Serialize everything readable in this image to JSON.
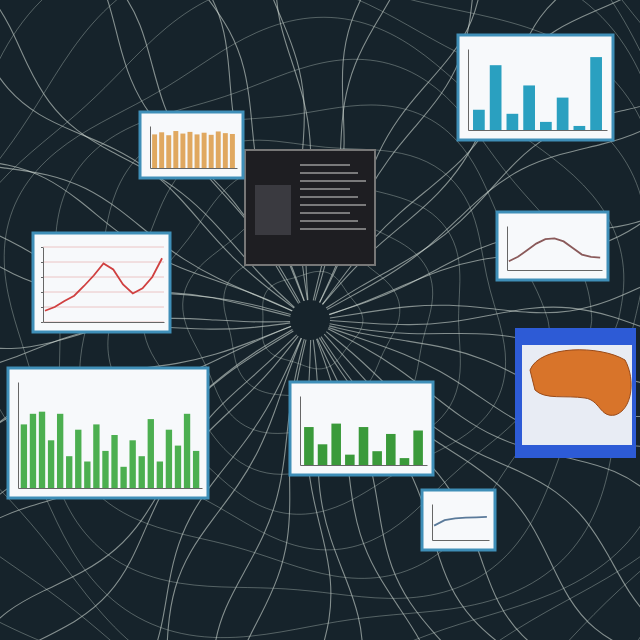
{
  "chart_data": [
    {
      "type": "bar",
      "categories": [
        null,
        null,
        null,
        null,
        null,
        null,
        null,
        null,
        null,
        null,
        null,
        null
      ],
      "values": [
        80,
        85,
        78,
        88,
        82,
        86,
        80,
        84,
        79,
        87,
        83,
        81
      ],
      "color": "#e0a860",
      "ylim": [
        0,
        100
      ],
      "tick_labels": false
    },
    {
      "type": "bar",
      "categories": [
        null,
        null,
        null,
        null,
        null,
        null,
        null,
        null
      ],
      "values": [
        25,
        80,
        20,
        55,
        10,
        40,
        5,
        90
      ],
      "color": "#2aa0c0",
      "ylim": [
        0,
        100
      ],
      "tick_labels": false
    },
    {
      "type": "line",
      "categories": [
        null,
        null,
        null,
        null,
        null,
        null,
        null,
        null,
        null,
        null,
        null,
        null,
        null
      ],
      "values": [
        15,
        20,
        28,
        35,
        48,
        62,
        78,
        70,
        50,
        38,
        45,
        60,
        85
      ],
      "color": "#d04040",
      "ylim": [
        0,
        100
      ],
      "yticks": [
        0,
        20,
        40,
        60,
        80,
        100
      ],
      "grid": true,
      "tick_labels": false
    },
    {
      "type": "line",
      "categories": [
        null,
        null,
        null,
        null,
        null,
        null,
        null,
        null,
        null,
        null,
        null
      ],
      "values": [
        20,
        30,
        45,
        60,
        70,
        72,
        65,
        50,
        35,
        30,
        28
      ],
      "color": "#8a5a5a",
      "ylim": [
        0,
        100
      ],
      "tick_labels": false
    },
    {
      "type": "bar",
      "categories": [
        null,
        null,
        null,
        null,
        null,
        null,
        null,
        null,
        null,
        null,
        null,
        null,
        null,
        null,
        null,
        null,
        null,
        null,
        null,
        null
      ],
      "values": [
        60,
        70,
        72,
        45,
        70,
        30,
        55,
        25,
        60,
        35,
        50,
        20,
        45,
        30,
        65,
        25,
        55,
        40,
        70,
        35
      ],
      "color": "#4caf50",
      "ylim": [
        0,
        100
      ],
      "tick_labels": false
    },
    {
      "type": "bar",
      "categories": [
        null,
        null,
        null,
        null,
        null,
        null,
        null,
        null,
        null
      ],
      "values": [
        55,
        30,
        60,
        15,
        55,
        20,
        45,
        10,
        50
      ],
      "color": "#3a9a3a",
      "ylim": [
        0,
        100
      ],
      "tick_labels": false
    },
    {
      "type": "line",
      "categories": [
        null,
        null,
        null,
        null,
        null,
        null
      ],
      "values": [
        40,
        55,
        60,
        62,
        63,
        64
      ],
      "color": "#5a7a9a",
      "ylim": [
        0,
        100
      ],
      "tick_labels": false
    }
  ]
}
